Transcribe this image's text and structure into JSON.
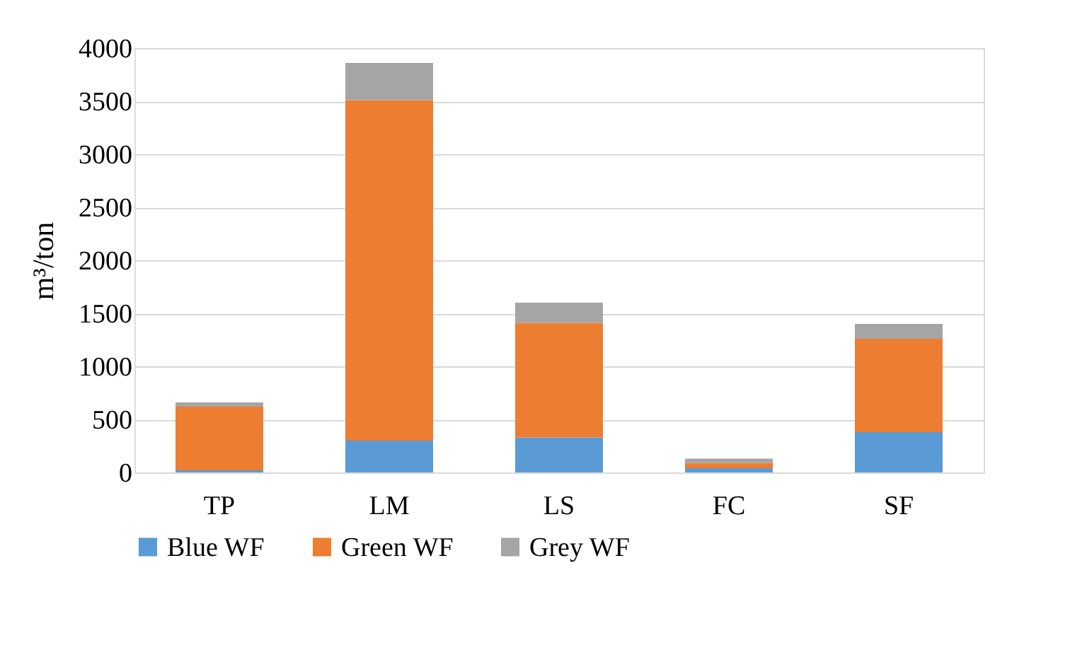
{
  "chart_data": {
    "type": "bar",
    "stacked": true,
    "ylabel": "m³/ton",
    "categories": [
      "TP",
      "LM",
      "LS",
      "FC",
      "SF"
    ],
    "series": [
      {
        "name": "Blue WF",
        "color": "#5b9bd5",
        "values": [
          20,
          300,
          330,
          40,
          380
        ]
      },
      {
        "name": "Green WF",
        "color": "#ed7d31",
        "values": [
          600,
          3210,
          1080,
          50,
          880
        ]
      },
      {
        "name": "Grey WF",
        "color": "#a5a5a5",
        "values": [
          40,
          350,
          190,
          40,
          140
        ]
      }
    ],
    "ylim": [
      0,
      4000
    ],
    "yticks": [
      0,
      500,
      1000,
      1500,
      2000,
      2500,
      3000,
      3500,
      4000
    ],
    "grid": "y",
    "legend": "bottom"
  }
}
